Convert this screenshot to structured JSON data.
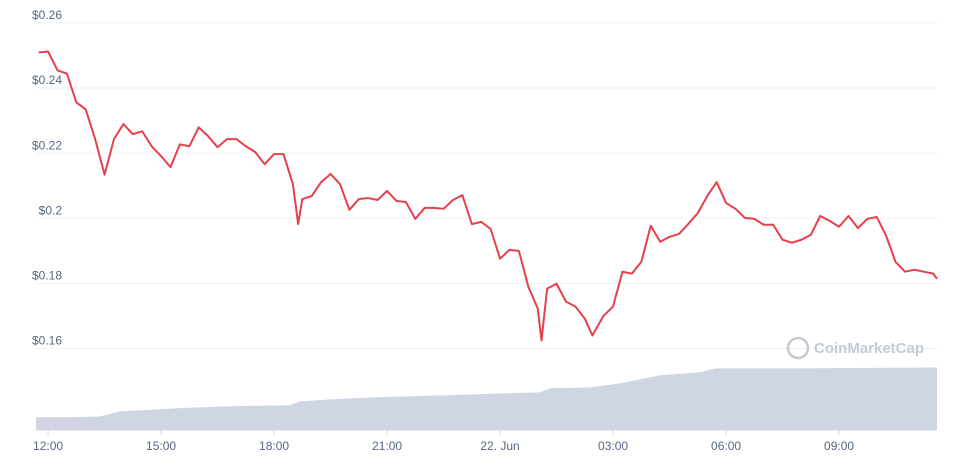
{
  "chart_data": {
    "type": "line",
    "x": [
      -0.25,
      0,
      0.25,
      0.5,
      0.75,
      1,
      1.25,
      1.5,
      1.75,
      2,
      2.25,
      2.5,
      2.75,
      3,
      3.25,
      3.5,
      3.75,
      4,
      4.25,
      4.5,
      4.75,
      5,
      5.25,
      5.5,
      5.75,
      6,
      6.25,
      6.5,
      6.64,
      6.75,
      7,
      7.25,
      7.5,
      7.75,
      8,
      8.25,
      8.5,
      8.75,
      9,
      9.25,
      9.5,
      9.75,
      10,
      10.25,
      10.5,
      10.75,
      11,
      11.25,
      11.5,
      11.75,
      12,
      12.25,
      12.5,
      12.75,
      13,
      13.1,
      13.25,
      13.5,
      13.75,
      14,
      14.25,
      14.45,
      14.75,
      15,
      15.25,
      15.5,
      15.75,
      16,
      16.25,
      16.5,
      16.75,
      17,
      17.25,
      17.5,
      17.75,
      18,
      18.25,
      18.5,
      18.75,
      19,
      19.25,
      19.5,
      19.75,
      20,
      20.25,
      20.5,
      20.75,
      21,
      21.25,
      21.5,
      21.75,
      22,
      22.25,
      22.5,
      22.75,
      23,
      23.25,
      23.5,
      23.6
    ],
    "values": [
      0.2509,
      0.2512,
      0.2454,
      0.2444,
      0.2356,
      0.2334,
      0.2243,
      0.2134,
      0.2243,
      0.2289,
      0.2258,
      0.2267,
      0.2221,
      0.2191,
      0.2157,
      0.2227,
      0.2221,
      0.2279,
      0.2252,
      0.2218,
      0.2243,
      0.2243,
      0.2221,
      0.2203,
      0.2166,
      0.2197,
      0.2197,
      0.2105,
      0.1982,
      0.2059,
      0.2068,
      0.2111,
      0.2136,
      0.2105,
      0.2026,
      0.2059,
      0.2062,
      0.2056,
      0.2084,
      0.2053,
      0.205,
      0.1998,
      0.2032,
      0.2032,
      0.2029,
      0.2056,
      0.2071,
      0.1982,
      0.1989,
      0.1967,
      0.1876,
      0.1903,
      0.19,
      0.179,
      0.1723,
      0.1625,
      0.1784,
      0.1799,
      0.1744,
      0.1729,
      0.1692,
      0.164,
      0.1701,
      0.1729,
      0.1836,
      0.183,
      0.1866,
      0.1977,
      0.1928,
      0.1943,
      0.1952,
      0.1983,
      0.2016,
      0.2068,
      0.2111,
      0.2047,
      0.2029,
      0.2001,
      0.1998,
      0.198,
      0.198,
      0.1934,
      0.1925,
      0.1934,
      0.1949,
      0.2007,
      0.1992,
      0.1974,
      0.2007,
      0.197,
      0.1998,
      0.2004,
      0.1946,
      0.1866,
      0.1836,
      0.1842,
      0.1836,
      0.183,
      0.1814
    ],
    "color": "#e5414b",
    "volume": {
      "x": [
        -0.32,
        0.58,
        1.38,
        1.91,
        3.5,
        4.83,
        6.42,
        6.69,
        7.49,
        8.81,
        10.67,
        12.27,
        13.06,
        13.33,
        14.39,
        15.19,
        15.85,
        16.25,
        17.31,
        17.71,
        19.96,
        23.6
      ],
      "values": [
        0.1389,
        0.1389,
        0.1392,
        0.1407,
        0.1417,
        0.1423,
        0.1426,
        0.1438,
        0.1444,
        0.1451,
        0.1457,
        0.1463,
        0.1466,
        0.1478,
        0.1481,
        0.1493,
        0.1509,
        0.1518,
        0.1527,
        0.1539,
        0.1539,
        0.1542
      ],
      "color": "#cfd5e2"
    },
    "xlim": [
      -0.32,
      23.6
    ],
    "xticks": [
      {
        "value": 0,
        "label": "12:00"
      },
      {
        "value": 3,
        "label": "15:00"
      },
      {
        "value": 6,
        "label": "18:00"
      },
      {
        "value": 9,
        "label": "21:00"
      },
      {
        "value": 12,
        "label": "22. Jun"
      },
      {
        "value": 15,
        "label": "03:00"
      },
      {
        "value": 18,
        "label": "06:00"
      },
      {
        "value": 21,
        "label": "09:00"
      }
    ],
    "ylim": [
      0.135,
      0.267
    ],
    "yticks": [
      {
        "value": 0.16,
        "label": "$0.16"
      },
      {
        "value": 0.18,
        "label": "$0.18"
      },
      {
        "value": 0.2,
        "label": "$0.2"
      },
      {
        "value": 0.22,
        "label": "$0.22"
      },
      {
        "value": 0.24,
        "label": "$0.24"
      },
      {
        "value": 0.26,
        "label": "$0.26"
      }
    ],
    "grid": true,
    "watermark": "CoinMarketCap"
  }
}
